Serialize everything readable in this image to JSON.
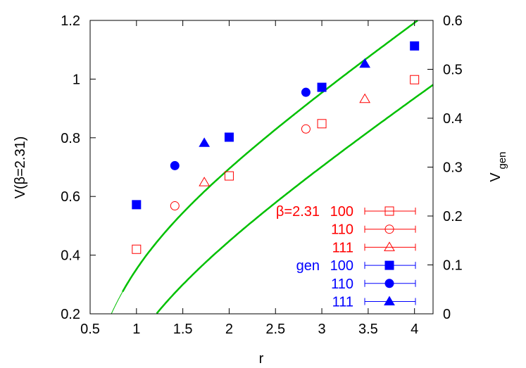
{
  "chart_data": {
    "type": "scatter",
    "title": "",
    "xlabel": "r",
    "ylabel": "V(β=2.31)",
    "ylabel_right": "V",
    "ylabel_right_sub": "gen",
    "xlim": [
      0.5,
      4.2
    ],
    "ylim": [
      0.2,
      1.2
    ],
    "ylim_right": [
      0,
      0.6
    ],
    "x_ticks": [
      "0.5",
      "1",
      "1.5",
      "2",
      "2.5",
      "3",
      "3.5",
      "4"
    ],
    "y_ticks": [
      "0.2",
      "0.4",
      "0.6",
      "0.8",
      "1",
      "1.2"
    ],
    "y_ticks_right": [
      "0",
      "0.1",
      "0.2",
      "0.3",
      "0.4",
      "0.5",
      "0.6"
    ],
    "grid": false,
    "legend_position": "bottom-right",
    "series": [
      {
        "name": "β=2.31 100",
        "label_prefix": "β=2.31",
        "label": "100",
        "marker": "open-square",
        "color": "#ff0000",
        "x": [
          1,
          2,
          3,
          4
        ],
        "y": [
          0.42,
          0.67,
          0.848,
          0.998
        ]
      },
      {
        "label": "110",
        "marker": "open-circle",
        "color": "#ff0000",
        "x": [
          1.414,
          2.828
        ],
        "y": [
          0.568,
          0.83
        ]
      },
      {
        "label": "111",
        "marker": "open-triangle",
        "color": "#ff0000",
        "x": [
          1.732,
          3.464
        ],
        "y": [
          0.648,
          0.932
        ]
      },
      {
        "name": "gen 100",
        "label_prefix": "gen",
        "label": "100",
        "marker": "filled-square",
        "color": "#0000ff",
        "x": [
          1,
          2,
          3,
          4
        ],
        "y": [
          0.572,
          0.802,
          0.972,
          1.113
        ]
      },
      {
        "label": "110",
        "marker": "filled-circle",
        "color": "#0000ff",
        "x": [
          1.414,
          2.828
        ],
        "y": [
          0.705,
          0.955
        ]
      },
      {
        "label": "111",
        "marker": "filled-triangle",
        "color": "#0000ff",
        "x": [
          1.732,
          3.464
        ],
        "y": [
          0.782,
          1.052
        ]
      }
    ],
    "fit_curves": [
      {
        "color": "#00c000",
        "x_start": 0.55,
        "x_thick_start": 0.85,
        "x_end": 4.2,
        "coefficients": {
          "c": 0.1475,
          "a": 0.13,
          "sigma": 0.2125
        }
      },
      {
        "color": "#00c000",
        "x_start": 0.5,
        "x_thick_start": 0.85,
        "x_end": 4.2,
        "coefficients": {
          "c": 0.3845,
          "a": 0.13,
          "sigma": 0.2175
        }
      }
    ]
  }
}
